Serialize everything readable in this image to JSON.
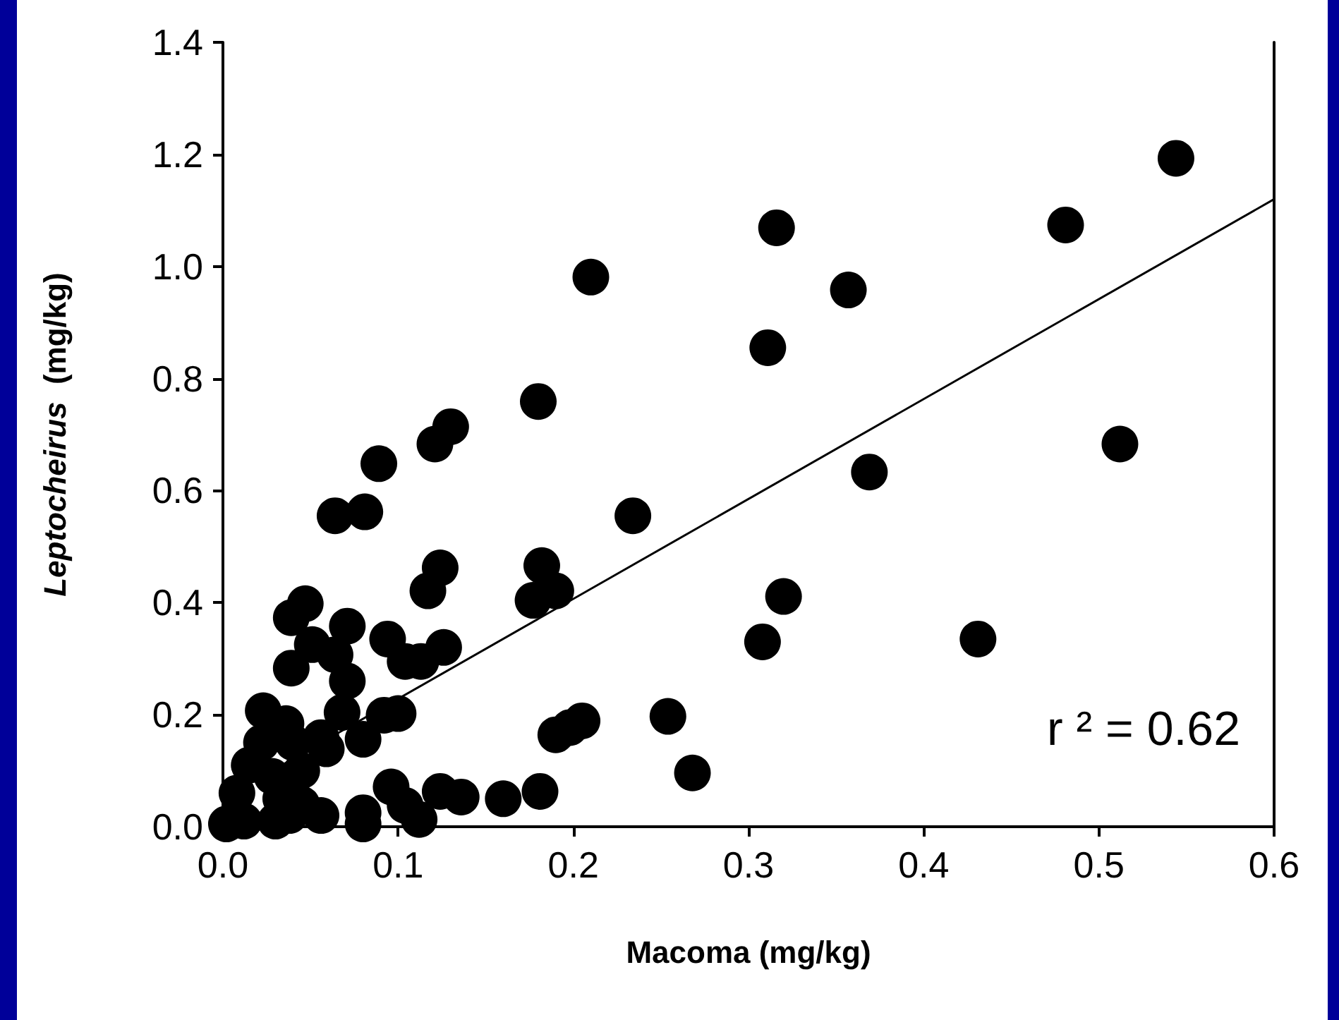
{
  "chart_data": {
    "type": "scatter",
    "xlabel": "Macoma (mg/kg)",
    "ylabel": "Leptocheirus  (mg/kg)",
    "annotations": [
      "r ² = 0.62"
    ],
    "xlim": [
      0,
      0.6
    ],
    "ylim": [
      0,
      1.4
    ],
    "xticks": [
      {
        "value": 0,
        "label": "0.0"
      },
      {
        "value": 0.1,
        "label": "0.1"
      },
      {
        "value": 0.2,
        "label": "0.2"
      },
      {
        "value": 0.3,
        "label": "0.3"
      },
      {
        "value": 0.4,
        "label": "0.4"
      },
      {
        "value": 0.5,
        "label": "0.5"
      },
      {
        "value": 0.6,
        "label": "0.6"
      }
    ],
    "yticks": [
      {
        "value": 0,
        "label": "0.0"
      },
      {
        "value": 0.2,
        "label": "0.2"
      },
      {
        "value": 0.4,
        "label": "0.4"
      },
      {
        "value": 0.6,
        "label": "0.6"
      },
      {
        "value": 0.8,
        "label": "0.8"
      },
      {
        "value": 1.0,
        "label": "1.0"
      },
      {
        "value": 1.2,
        "label": "1.2"
      },
      {
        "value": 1.4,
        "label": "1.4"
      }
    ],
    "grid": false,
    "marker": "circle",
    "series": [
      {
        "color": "#000000",
        "x": [
          0.544,
          0.481,
          0.316,
          0.357,
          0.311,
          0.512,
          0.369,
          0.234,
          0.32,
          0.308,
          0.431,
          0.254,
          0.268,
          0.21,
          0.18,
          0.13,
          0.121,
          0.089,
          0.064,
          0.081,
          0.124,
          0.117,
          0.182,
          0.19,
          0.177,
          0.047,
          0.039,
          0.071,
          0.051,
          0.094,
          0.064,
          0.126,
          0.104,
          0.113,
          0.039,
          0.071,
          0.068,
          0.023,
          0.036,
          0.092,
          0.1,
          0.056,
          0.08,
          0.059,
          0.19,
          0.198,
          0.205,
          0.096,
          0.124,
          0.136,
          0.16,
          0.181,
          0.056,
          0.08,
          0.08,
          0.104,
          0.112,
          0.002,
          0.038,
          0.03,
          0.012,
          0.045,
          0.04,
          0.045,
          0.008,
          0.015,
          0.022,
          0.028,
          0.033
        ],
        "values": [
          1.193,
          1.074,
          1.069,
          0.958,
          0.855,
          0.683,
          0.633,
          0.555,
          0.411,
          0.33,
          0.335,
          0.197,
          0.096,
          0.981,
          0.759,
          0.714,
          0.683,
          0.648,
          0.555,
          0.562,
          0.462,
          0.421,
          0.466,
          0.421,
          0.404,
          0.398,
          0.373,
          0.358,
          0.325,
          0.335,
          0.307,
          0.32,
          0.295,
          0.295,
          0.283,
          0.26,
          0.204,
          0.207,
          0.184,
          0.199,
          0.202,
          0.159,
          0.156,
          0.139,
          0.164,
          0.177,
          0.189,
          0.071,
          0.063,
          0.053,
          0.05,
          0.063,
          0.02,
          0.025,
          0.005,
          0.038,
          0.013,
          0.005,
          0.02,
          0.01,
          0.01,
          0.1,
          0.15,
          0.04,
          0.06,
          0.11,
          0.15,
          0.09,
          0.05
        ]
      },
      {
        "type": "line",
        "color": "#000000",
        "marker": "none",
        "line_style": "solid",
        "x": [
          0,
          0.6
        ],
        "values": [
          0.05,
          1.12
        ]
      }
    ]
  }
}
